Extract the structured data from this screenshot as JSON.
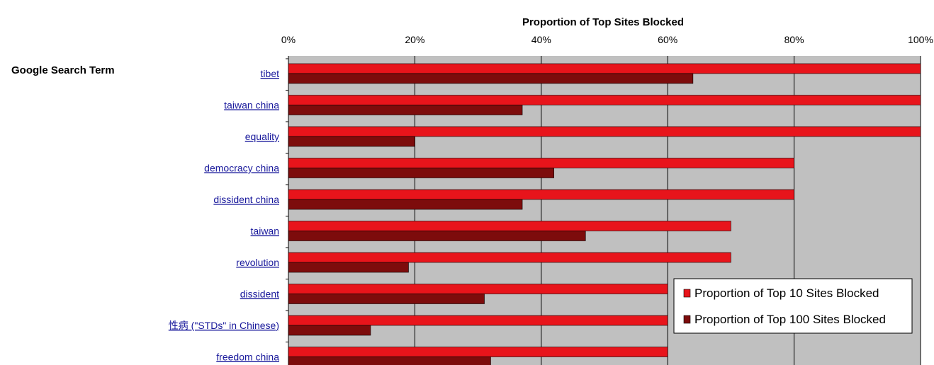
{
  "chart_data": {
    "type": "bar",
    "orientation": "horizontal",
    "title": "Proportion of Top  Sites Blocked",
    "row_header": "Google Search Term",
    "categories": [
      "tibet",
      "taiwan china",
      "equality",
      "democracy china",
      "dissident china",
      "taiwan",
      "revolution",
      "dissident",
      "性病 (\"STDs\" in Chinese)",
      "freedom china"
    ],
    "series": [
      {
        "name": "Proportion of Top 10 Sites Blocked",
        "color": "#e8141b",
        "values": [
          1.0,
          1.0,
          1.0,
          0.8,
          0.8,
          0.7,
          0.7,
          0.6,
          0.6,
          0.6
        ]
      },
      {
        "name": "Proportion of Top 100 Sites Blocked",
        "color": "#7d0c0c",
        "values": [
          0.64,
          0.37,
          0.2,
          0.42,
          0.37,
          0.47,
          0.19,
          0.31,
          0.13,
          0.32
        ]
      }
    ],
    "xlim": [
      0,
      1
    ],
    "xticks": [
      "0%",
      "20%",
      "40%",
      "60%",
      "80%",
      "100%"
    ],
    "plot_background": "#c0c0c0",
    "grid": true,
    "legend_position": "bottom-right"
  }
}
